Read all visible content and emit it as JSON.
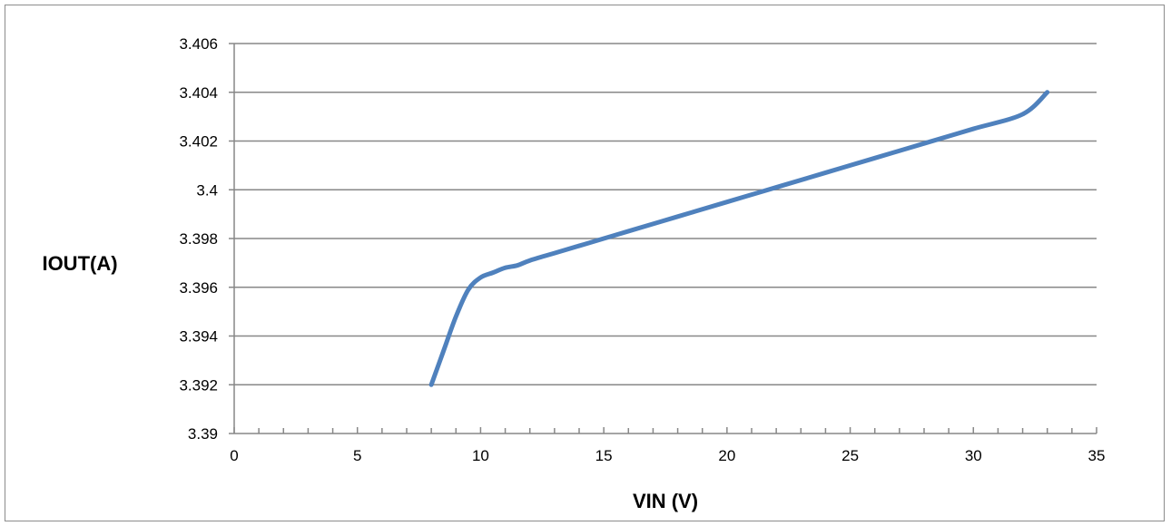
{
  "chart_data": {
    "type": "line",
    "title": "",
    "xlabel": "VIN (V)",
    "ylabel": "IOUT(A)",
    "xlim": [
      0,
      35
    ],
    "ylim": [
      3.39,
      3.406
    ],
    "x_ticks": [
      "0",
      "5",
      "10",
      "15",
      "20",
      "25",
      "30",
      "35"
    ],
    "y_ticks": [
      "3.39",
      "3.392",
      "3.394",
      "3.396",
      "3.398",
      "3.4",
      "3.402",
      "3.404",
      "3.406"
    ],
    "x_minor_step": 1,
    "grid": "horizontal",
    "legend": "none",
    "series": [
      {
        "color": "#4f81bd",
        "x": [
          8,
          8.5,
          9,
          9.5,
          10,
          10.5,
          11,
          11.5,
          12,
          13,
          14,
          15,
          16,
          18,
          20,
          21,
          22,
          24,
          26,
          27,
          28,
          30,
          32,
          33
        ],
        "y": [
          3.392,
          3.3934,
          3.3948,
          3.3959,
          3.3964,
          3.3966,
          3.3968,
          3.3969,
          3.3971,
          3.3974,
          3.3977,
          3.398,
          3.3983,
          3.3989,
          3.3995,
          3.3998,
          3.4001,
          3.4007,
          3.4013,
          3.4016,
          3.4019,
          3.4025,
          3.4031,
          3.404
        ]
      }
    ]
  },
  "colors": {
    "line": "#4f81bd",
    "grid": "#878787",
    "axis": "#878787",
    "frame": "#8c8c8c"
  }
}
